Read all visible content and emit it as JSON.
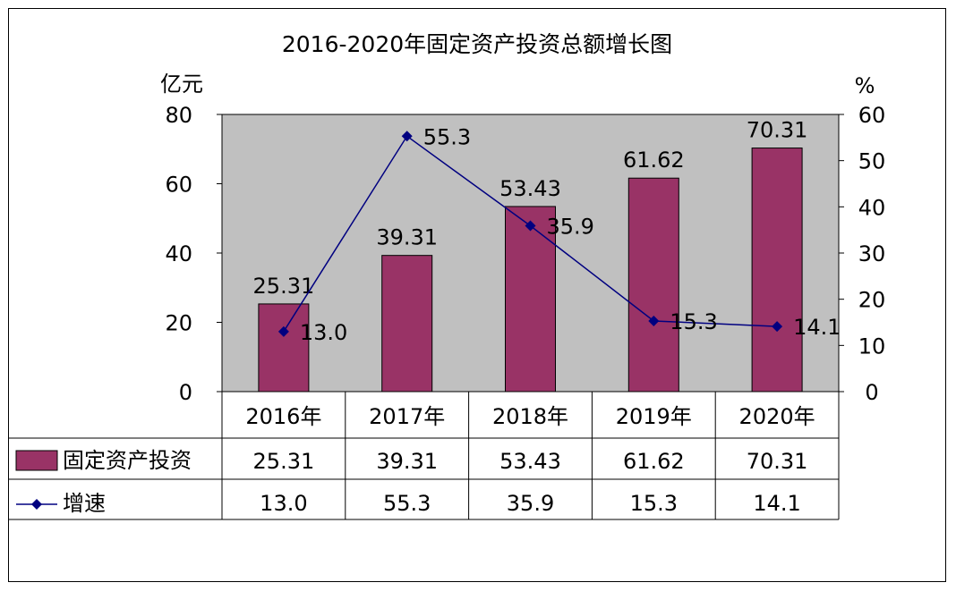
{
  "chart_data": {
    "type": "bar",
    "title": "2016-2020年固定资产投资总额增长图",
    "y_left_label": "亿元",
    "y_right_label": "%",
    "categories": [
      "2016年",
      "2017年",
      "2018年",
      "2019年",
      "2020年"
    ],
    "y_left_range": [
      0,
      80
    ],
    "y_left_ticks": [
      "0",
      "20",
      "40",
      "60",
      "80"
    ],
    "y_right_range": [
      0,
      60
    ],
    "y_right_ticks": [
      "0",
      "10",
      "20",
      "30",
      "40",
      "50",
      "60"
    ],
    "plot_background": "#c0c0c0",
    "series": [
      {
        "name": "固定资产投资",
        "type": "bar",
        "axis": "left",
        "color": "#993366",
        "values": [
          25.31,
          39.31,
          53.43,
          61.62,
          70.31
        ],
        "labels": [
          "25.31",
          "39.31",
          "53.43",
          "61.62",
          "70.31"
        ]
      },
      {
        "name": "增速",
        "type": "line",
        "axis": "right",
        "color": "#000080",
        "values": [
          13.0,
          55.3,
          35.9,
          15.3,
          14.1
        ],
        "labels": [
          "13.0",
          "55.3",
          "35.9",
          "15.3",
          "14.1"
        ]
      }
    ],
    "data_table": true
  }
}
